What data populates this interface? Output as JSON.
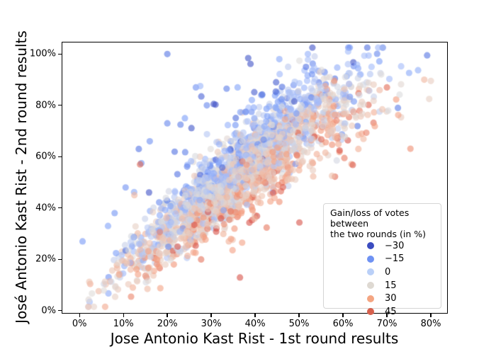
{
  "chart_data": {
    "type": "scatter",
    "title": "",
    "xlabel": "Jose Antonio Kast Rist - 1st round results",
    "ylabel": "José Antonio Kast Rist - 2nd round results",
    "x_ticks": {
      "values": [
        0,
        10,
        20,
        30,
        40,
        50,
        60,
        70,
        80
      ],
      "labels": [
        "0%",
        "10%",
        "20%",
        "30%",
        "40%",
        "50%",
        "60%",
        "70%",
        "80%"
      ]
    },
    "y_ticks": {
      "values": [
        0,
        20,
        40,
        60,
        80,
        100
      ],
      "labels": [
        "0%",
        "20%",
        "40%",
        "60%",
        "80%",
        "100%"
      ]
    },
    "xlim": [
      -3.9,
      83.7
    ],
    "ylim": [
      -0.9,
      104.5
    ],
    "grid": false,
    "marker": {
      "radius": 4.6,
      "alpha": 0.6
    },
    "colormap": {
      "name": "coolwarm",
      "domain": [
        -35,
        60
      ],
      "stops": [
        [
          0.0,
          "#3b4cc0"
        ],
        [
          0.125,
          "#5171e2"
        ],
        [
          0.25,
          "#7c9ff9"
        ],
        [
          0.375,
          "#a6bdfa"
        ],
        [
          0.5,
          "#dddcdb"
        ],
        [
          0.625,
          "#eec1ae"
        ],
        [
          0.75,
          "#f49a7b"
        ],
        [
          0.875,
          "#de604d"
        ],
        [
          1.0,
          "#b40426"
        ]
      ]
    },
    "legend": {
      "position": "lower right",
      "title_lines": [
        "Gain/loss of votes between",
        "the two rounds (in %)"
      ],
      "entries": [
        {
          "label": "−30",
          "value": -30,
          "color": "#3b4cc0"
        },
        {
          "label": "−15",
          "value": -15,
          "color": "#6f92f3"
        },
        {
          "label": "0",
          "value": 0,
          "color": "#bad0f8"
        },
        {
          "label": "15",
          "value": 15,
          "color": "#ded9d2"
        },
        {
          "label": "30",
          "value": 30,
          "color": "#f4a582"
        },
        {
          "label": "45",
          "value": 45,
          "color": "#d6604d"
        }
      ]
    },
    "distribution": {
      "seed": 11,
      "n": 2400,
      "x_mean": 37,
      "x_sd": 13.5,
      "x_min": 1.5,
      "x_max": 80.5,
      "slope1": 1.35,
      "intercept1": 4.0,
      "slope2": 0.45,
      "intercept2": 53,
      "y_sd_base": 5.0,
      "y_sd_slope": 0.08,
      "y_min": 1.5,
      "y_max": 102.5,
      "up_outlier_prob": 0.022,
      "up_outlier_mean": 17,
      "up_outlier_sd": 9,
      "up_outlier_v_shift": -6,
      "down_outlier_prob": 0.018,
      "down_outlier_mean": 14,
      "down_outlier_sd": 7,
      "v_base": 14,
      "v_dy_coeff": -0.95,
      "v_noise_sd": 12,
      "dark_shift_prob": 0.02,
      "dark_shift": -30,
      "v_min": -33,
      "v_max": 50
    },
    "notable_points": [
      [
        20,
        100,
        -22
      ],
      [
        26.5,
        87,
        -15
      ],
      [
        27.5,
        87.5,
        -3
      ],
      [
        0.7,
        27,
        -13
      ],
      [
        70,
        87,
        46
      ],
      [
        72.5,
        79,
        -20
      ],
      [
        78.5,
        90,
        28
      ],
      [
        80,
        89.5,
        20
      ],
      [
        13.8,
        57,
        47
      ],
      [
        20,
        73,
        -18
      ],
      [
        23,
        72.5,
        -20
      ],
      [
        16,
        66,
        -15
      ],
      [
        13.5,
        63,
        -22
      ],
      [
        10.5,
        48,
        -15
      ],
      [
        45.5,
        98,
        -8
      ],
      [
        52,
        100,
        -5
      ],
      [
        47.5,
        95,
        5
      ],
      [
        57,
        91,
        15
      ],
      [
        60.5,
        91,
        12
      ],
      [
        33.5,
        86.5,
        -20
      ],
      [
        36,
        87,
        -10
      ],
      [
        63.5,
        63,
        30
      ],
      [
        57.5,
        52.5,
        25
      ],
      [
        34,
        27,
        30
      ],
      [
        29,
        80,
        -18
      ],
      [
        24,
        75,
        -12
      ],
      [
        8,
        38,
        -14
      ],
      [
        6.5,
        33,
        -10
      ],
      [
        12.5,
        45,
        28
      ]
    ]
  }
}
